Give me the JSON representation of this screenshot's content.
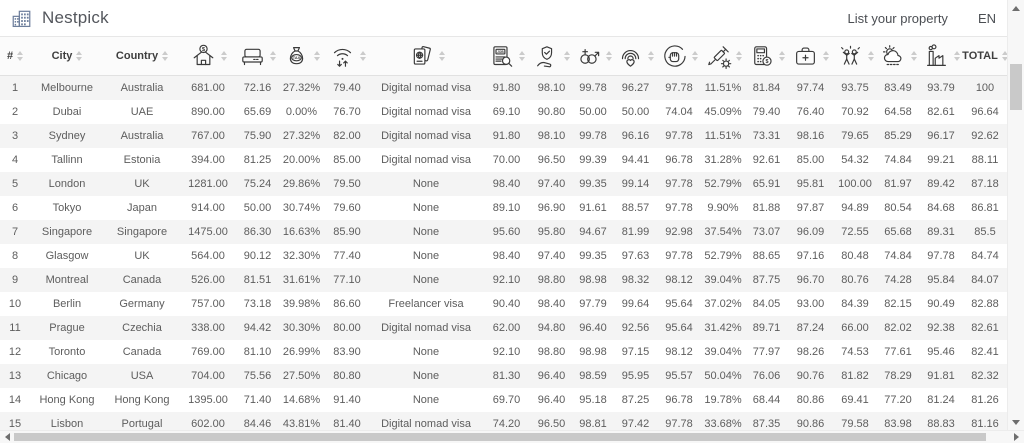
{
  "navbar": {
    "brand": "Nestpick",
    "brand_logo_icon": "nestpick-logo-icon",
    "links": {
      "list_property": "List your property",
      "language": "EN"
    }
  },
  "colors": {
    "row_alt_background": "#f4f4f4",
    "header_background": "#fbfbfb",
    "text": "#5d5d5d",
    "logo": "#6e7f9c"
  },
  "table": {
    "columns": [
      {
        "key": "rank",
        "label": "#"
      },
      {
        "key": "city",
        "label": "City"
      },
      {
        "key": "country",
        "label": "Country"
      },
      {
        "key": "rent_cost",
        "icon": "rent-house-dollar-icon"
      },
      {
        "key": "housing",
        "icon": "bed-icon"
      },
      {
        "key": "tax",
        "icon": "tax-money-bag-icon"
      },
      {
        "key": "internet_speed",
        "icon": "wifi-speed-icon"
      },
      {
        "key": "visa",
        "icon": "passport-visa-icon"
      },
      {
        "key": "job_opportunities",
        "icon": "job-search-icon"
      },
      {
        "key": "safety",
        "icon": "safety-shield-hand-icon"
      },
      {
        "key": "gender_equality",
        "icon": "gender-equality-icon"
      },
      {
        "key": "lgbt_friendliness",
        "icon": "rainbow-heart-icon"
      },
      {
        "key": "civil_rights",
        "icon": "raised-fist-icon"
      },
      {
        "key": "vaccination_rate",
        "icon": "vaccine-syringe-icon"
      },
      {
        "key": "affordability",
        "icon": "calculator-coin-icon"
      },
      {
        "key": "healthcare",
        "icon": "first-aid-kit-icon"
      },
      {
        "key": "leisure_nightlife",
        "icon": "people-celebrating-icon"
      },
      {
        "key": "climate",
        "icon": "sun-cloud-rain-icon"
      },
      {
        "key": "pollution",
        "icon": "factory-smoke-icon"
      },
      {
        "key": "total",
        "label": "TOTAL"
      }
    ],
    "rows": [
      [
        "1",
        "Melbourne",
        "Australia",
        "681.00",
        "72.16",
        "27.32%",
        "79.40",
        "Digital nomad visa",
        "91.80",
        "98.10",
        "99.78",
        "96.27",
        "97.78",
        "11.51%",
        "81.84",
        "97.74",
        "93.75",
        "83.49",
        "93.79",
        "100"
      ],
      [
        "2",
        "Dubai",
        "UAE",
        "890.00",
        "65.69",
        "0.00%",
        "76.70",
        "Digital nomad visa",
        "69.10",
        "90.80",
        "50.00",
        "50.00",
        "74.04",
        "45.09%",
        "79.40",
        "76.40",
        "70.92",
        "64.58",
        "82.61",
        "96.64"
      ],
      [
        "3",
        "Sydney",
        "Australia",
        "767.00",
        "75.90",
        "27.32%",
        "82.00",
        "Digital nomad visa",
        "91.80",
        "98.10",
        "99.78",
        "96.16",
        "97.78",
        "11.51%",
        "73.31",
        "98.16",
        "79.65",
        "85.29",
        "96.17",
        "92.62"
      ],
      [
        "4",
        "Tallinn",
        "Estonia",
        "394.00",
        "81.25",
        "20.00%",
        "85.00",
        "Digital nomad visa",
        "70.00",
        "96.50",
        "99.39",
        "94.41",
        "96.78",
        "31.28%",
        "92.61",
        "85.00",
        "54.32",
        "74.84",
        "99.21",
        "88.11"
      ],
      [
        "5",
        "London",
        "UK",
        "1281.00",
        "75.24",
        "29.86%",
        "79.50",
        "None",
        "98.40",
        "97.40",
        "99.35",
        "99.14",
        "97.78",
        "52.79%",
        "65.91",
        "95.81",
        "100.00",
        "81.97",
        "89.42",
        "87.18"
      ],
      [
        "6",
        "Tokyo",
        "Japan",
        "914.00",
        "50.00",
        "30.74%",
        "79.60",
        "None",
        "89.10",
        "96.90",
        "91.61",
        "88.57",
        "97.78",
        "9.90%",
        "81.88",
        "97.87",
        "94.89",
        "80.54",
        "84.68",
        "86.81"
      ],
      [
        "7",
        "Singapore",
        "Singapore",
        "1475.00",
        "86.30",
        "16.63%",
        "85.90",
        "None",
        "95.60",
        "95.80",
        "94.67",
        "81.99",
        "92.98",
        "37.54%",
        "73.07",
        "96.09",
        "72.55",
        "65.68",
        "89.31",
        "85.5"
      ],
      [
        "8",
        "Glasgow",
        "UK",
        "564.00",
        "90.12",
        "32.30%",
        "77.40",
        "None",
        "98.40",
        "97.40",
        "99.35",
        "97.63",
        "97.78",
        "52.79%",
        "88.65",
        "97.16",
        "80.48",
        "74.84",
        "97.78",
        "84.74"
      ],
      [
        "9",
        "Montreal",
        "Canada",
        "526.00",
        "81.51",
        "31.61%",
        "77.10",
        "None",
        "92.10",
        "98.80",
        "98.98",
        "98.32",
        "98.12",
        "39.04%",
        "87.75",
        "96.70",
        "80.76",
        "74.28",
        "95.84",
        "84.07"
      ],
      [
        "10",
        "Berlin",
        "Germany",
        "757.00",
        "73.18",
        "39.98%",
        "86.60",
        "Freelancer visa",
        "90.40",
        "98.40",
        "97.79",
        "99.64",
        "95.64",
        "37.02%",
        "84.05",
        "93.00",
        "84.39",
        "82.15",
        "90.49",
        "82.88"
      ],
      [
        "11",
        "Prague",
        "Czechia",
        "338.00",
        "94.42",
        "30.30%",
        "80.00",
        "Digital nomad visa",
        "62.00",
        "94.80",
        "96.40",
        "92.56",
        "95.64",
        "31.42%",
        "89.71",
        "87.24",
        "66.00",
        "82.02",
        "92.38",
        "82.61"
      ],
      [
        "12",
        "Toronto",
        "Canada",
        "769.00",
        "81.10",
        "26.99%",
        "83.90",
        "None",
        "92.10",
        "98.80",
        "98.98",
        "97.15",
        "98.12",
        "39.04%",
        "77.97",
        "98.26",
        "74.53",
        "77.61",
        "95.46",
        "82.41"
      ],
      [
        "13",
        "Chicago",
        "USA",
        "704.00",
        "75.56",
        "27.50%",
        "80.80",
        "None",
        "81.30",
        "96.40",
        "98.59",
        "95.95",
        "95.57",
        "50.04%",
        "76.06",
        "90.76",
        "81.82",
        "78.29",
        "91.81",
        "82.32"
      ],
      [
        "14",
        "Hong Kong",
        "Hong Kong",
        "1395.00",
        "71.40",
        "14.68%",
        "91.40",
        "None",
        "69.70",
        "96.40",
        "95.18",
        "87.25",
        "96.78",
        "19.78%",
        "68.44",
        "80.86",
        "69.41",
        "77.20",
        "81.24",
        "81.26"
      ],
      [
        "15",
        "Lisbon",
        "Portugal",
        "602.00",
        "84.46",
        "43.81%",
        "81.40",
        "Digital nomad visa",
        "74.20",
        "96.50",
        "98.81",
        "97.42",
        "97.78",
        "33.68%",
        "87.35",
        "90.86",
        "79.58",
        "83.98",
        "88.83",
        "81.16"
      ]
    ]
  }
}
